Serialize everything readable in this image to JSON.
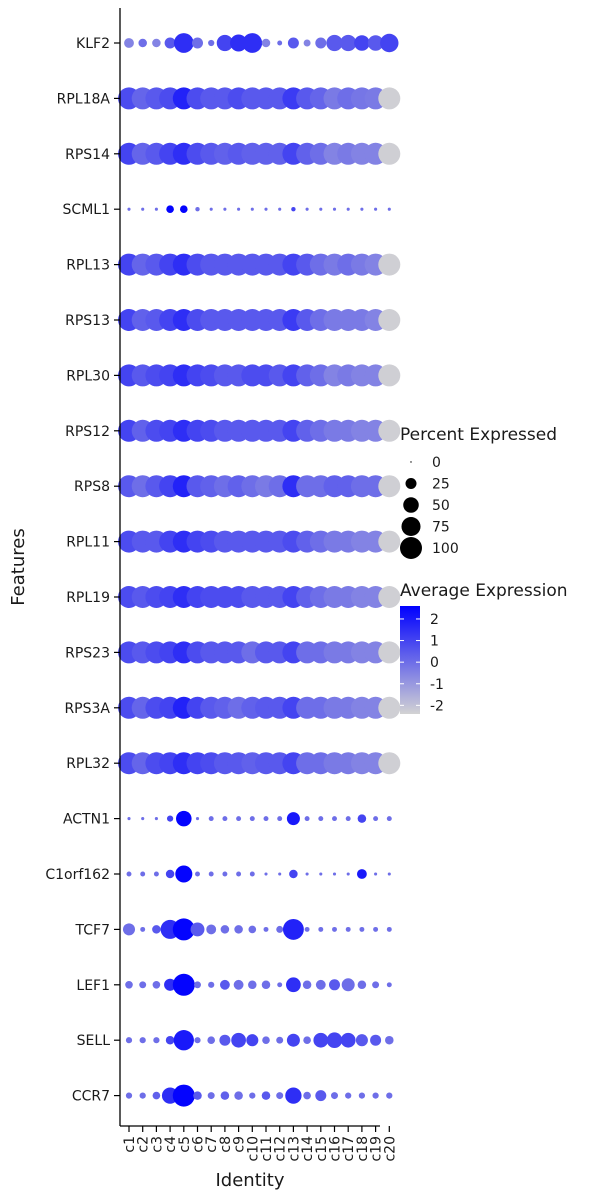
{
  "chart_data": {
    "type": "dotplot",
    "xlabel": "Identity",
    "ylabel": "Features",
    "categories": [
      "c1",
      "c2",
      "c3",
      "c4",
      "c5",
      "c6",
      "c7",
      "c8",
      "c9",
      "c10",
      "c11",
      "c12",
      "c13",
      "c14",
      "c15",
      "c16",
      "c17",
      "c18",
      "c19",
      "c20"
    ],
    "features": [
      "KLF2",
      "RPL18A",
      "RPS14",
      "SCML1",
      "RPL13",
      "RPS13",
      "RPL30",
      "RPS12",
      "RPS8",
      "RPL11",
      "RPL19",
      "RPS23",
      "RPS3A",
      "RPL32",
      "ACTN1",
      "C1orf162",
      "TCF7",
      "LEF1",
      "SELL",
      "CCR7"
    ],
    "rows": [
      {
        "feature": "KLF2",
        "pct": [
          20,
          15,
          15,
          25,
          80,
          25,
          8,
          55,
          60,
          80,
          15,
          5,
          25,
          10,
          25,
          55,
          55,
          50,
          50,
          70
        ],
        "avg": [
          -0.5,
          0,
          -0.5,
          0.5,
          1.5,
          0,
          0,
          1,
          1.5,
          1.5,
          -0.5,
          0,
          0.5,
          -0.5,
          0,
          0.5,
          0.5,
          1,
          0.5,
          1
        ]
      },
      {
        "feature": "RPL18A",
        "pct": [
          100,
          100,
          100,
          100,
          100,
          100,
          100,
          100,
          100,
          100,
          100,
          100,
          100,
          100,
          100,
          100,
          100,
          100,
          100,
          100
        ],
        "avg": [
          0.8,
          0.2,
          0.5,
          0.8,
          1.8,
          0.8,
          0.5,
          0.5,
          0.8,
          0.5,
          0.5,
          0.5,
          1.2,
          0.5,
          0.2,
          -0.3,
          0,
          -0.2,
          -0.3,
          -2.3
        ]
      },
      {
        "feature": "RPS14",
        "pct": [
          100,
          100,
          100,
          100,
          100,
          100,
          100,
          100,
          100,
          100,
          100,
          100,
          100,
          100,
          100,
          100,
          100,
          100,
          100,
          100
        ],
        "avg": [
          1,
          0.2,
          0.5,
          1,
          1.5,
          0.8,
          0.5,
          0.3,
          0.5,
          0.3,
          0.3,
          0.3,
          1,
          0.3,
          0,
          -0.5,
          -0.3,
          -0.5,
          -0.5,
          -2.3
        ]
      },
      {
        "feature": "SCML1",
        "pct": [
          2,
          2,
          2,
          12,
          12,
          4,
          2,
          2,
          2,
          2,
          2,
          2,
          4,
          2,
          2,
          2,
          2,
          2,
          2,
          2
        ],
        "avg": [
          0,
          0,
          0,
          2.5,
          2.5,
          0,
          0,
          0,
          0,
          0,
          0,
          0,
          1,
          0,
          0,
          0,
          0,
          0,
          0,
          0
        ]
      },
      {
        "feature": "RPL13",
        "pct": [
          100,
          100,
          100,
          100,
          100,
          100,
          100,
          100,
          100,
          100,
          100,
          100,
          100,
          100,
          100,
          100,
          100,
          100,
          100,
          100
        ],
        "avg": [
          1,
          0.2,
          0.5,
          1,
          1.5,
          0.8,
          0.5,
          0.5,
          0.5,
          0.5,
          0.5,
          0.5,
          1,
          0.5,
          0,
          -0.3,
          0,
          -0.3,
          -0.5,
          -2.3
        ]
      },
      {
        "feature": "RPS13",
        "pct": [
          100,
          100,
          100,
          100,
          100,
          100,
          100,
          100,
          100,
          100,
          100,
          100,
          100,
          100,
          100,
          100,
          100,
          100,
          100,
          100
        ],
        "avg": [
          1,
          0.3,
          0.5,
          1,
          1.5,
          0.8,
          0.5,
          0.5,
          0.5,
          0.5,
          0.5,
          0.5,
          1.2,
          0.5,
          0,
          -0.3,
          -0.3,
          -0.3,
          -0.5,
          -2.3
        ]
      },
      {
        "feature": "RPL30",
        "pct": [
          100,
          100,
          100,
          100,
          100,
          100,
          100,
          100,
          100,
          100,
          100,
          100,
          100,
          100,
          100,
          100,
          100,
          100,
          100,
          100
        ],
        "avg": [
          1,
          0.5,
          0.8,
          1,
          1.5,
          1,
          0.8,
          0.5,
          0.5,
          0.8,
          0.8,
          0.5,
          1,
          0.3,
          0,
          -0.5,
          -0.3,
          -0.5,
          -0.5,
          -2.3
        ]
      },
      {
        "feature": "RPS12",
        "pct": [
          100,
          100,
          100,
          100,
          100,
          100,
          100,
          100,
          100,
          100,
          100,
          100,
          100,
          100,
          100,
          100,
          100,
          100,
          100,
          100
        ],
        "avg": [
          1,
          0.3,
          0.8,
          1,
          1.5,
          1,
          0.8,
          0.5,
          0.5,
          0.5,
          0.5,
          0.5,
          1,
          0.3,
          0,
          -0.3,
          -0.3,
          -0.5,
          -0.5,
          -2.3
        ]
      },
      {
        "feature": "RPS8",
        "pct": [
          100,
          100,
          100,
          100,
          100,
          100,
          100,
          100,
          100,
          100,
          100,
          100,
          100,
          100,
          100,
          100,
          100,
          100,
          100,
          100
        ],
        "avg": [
          0.5,
          0,
          0.5,
          1,
          1.8,
          0.5,
          0.3,
          0,
          0.3,
          0,
          -0.3,
          0,
          1.5,
          0,
          0,
          0.3,
          0.3,
          0,
          0,
          -2.3
        ]
      },
      {
        "feature": "RPL11",
        "pct": [
          100,
          100,
          100,
          100,
          100,
          100,
          100,
          100,
          100,
          100,
          100,
          100,
          100,
          100,
          100,
          100,
          100,
          100,
          100,
          100
        ],
        "avg": [
          0.8,
          0.5,
          0.5,
          1,
          1.5,
          1,
          0.8,
          0.5,
          0.5,
          0.5,
          0.5,
          0.5,
          0.8,
          0.3,
          0,
          -0.3,
          -0.3,
          -0.5,
          -0.5,
          -2.3
        ]
      },
      {
        "feature": "RPL19",
        "pct": [
          100,
          100,
          100,
          100,
          100,
          100,
          100,
          100,
          100,
          100,
          100,
          100,
          100,
          100,
          100,
          100,
          100,
          100,
          100,
          100
        ],
        "avg": [
          0.8,
          0.5,
          0.8,
          1,
          1.5,
          1,
          0.8,
          0.8,
          0.8,
          0.5,
          0.5,
          0.5,
          1,
          0.3,
          0,
          -0.3,
          -0.3,
          -0.5,
          -0.5,
          -2.3
        ]
      },
      {
        "feature": "RPS23",
        "pct": [
          100,
          100,
          100,
          100,
          100,
          100,
          100,
          100,
          100,
          100,
          100,
          100,
          100,
          100,
          100,
          100,
          100,
          100,
          100,
          100
        ],
        "avg": [
          0.8,
          0.5,
          0.8,
          1,
          1.5,
          0.8,
          0.5,
          0.5,
          0.5,
          0,
          0.5,
          0.5,
          1,
          0,
          0,
          -0.3,
          -0.3,
          -0.5,
          -0.5,
          -2.3
        ]
      },
      {
        "feature": "RPS3A",
        "pct": [
          100,
          100,
          100,
          100,
          100,
          100,
          100,
          100,
          100,
          100,
          100,
          100,
          100,
          100,
          100,
          100,
          100,
          100,
          100,
          100
        ],
        "avg": [
          0.8,
          0.2,
          0.8,
          1,
          1.8,
          1,
          0.5,
          0.3,
          0,
          0.3,
          0.5,
          0.5,
          1,
          0,
          0,
          -0.3,
          -0.3,
          -0.5,
          -0.5,
          -2.3
        ]
      },
      {
        "feature": "RPL32",
        "pct": [
          100,
          100,
          100,
          100,
          100,
          100,
          100,
          100,
          100,
          100,
          100,
          100,
          100,
          100,
          100,
          100,
          100,
          100,
          100,
          100
        ],
        "avg": [
          0.8,
          0.2,
          0.8,
          1,
          1.5,
          1,
          0.8,
          0.5,
          0.5,
          0.3,
          0.5,
          0.5,
          1,
          0,
          0,
          -0.3,
          -0.3,
          -0.5,
          -0.5,
          -2.3
        ]
      },
      {
        "feature": "ACTN1",
        "pct": [
          2,
          2,
          2,
          8,
          50,
          2,
          5,
          5,
          5,
          5,
          5,
          5,
          35,
          5,
          5,
          5,
          5,
          15,
          5,
          5
        ],
        "avg": [
          0,
          0,
          0,
          1,
          2.5,
          0,
          0,
          0,
          0,
          0,
          0,
          0,
          2,
          0,
          0,
          0,
          0,
          1,
          0,
          0
        ]
      },
      {
        "feature": "C1orf162",
        "pct": [
          5,
          5,
          5,
          15,
          60,
          5,
          5,
          5,
          5,
          5,
          2,
          2,
          15,
          2,
          2,
          2,
          2,
          20,
          2,
          2
        ],
        "avg": [
          0,
          0,
          0,
          1,
          2.5,
          0,
          0,
          0,
          0,
          0,
          0,
          0,
          1,
          0,
          0,
          0,
          0,
          2,
          0,
          0
        ]
      },
      {
        "feature": "TCF7",
        "pct": [
          30,
          5,
          15,
          75,
          100,
          40,
          20,
          15,
          15,
          12,
          5,
          10,
          90,
          5,
          5,
          5,
          5,
          5,
          5,
          5
        ],
        "avg": [
          0,
          0,
          0.5,
          1.5,
          2.5,
          0.5,
          0,
          0,
          0,
          0,
          0,
          0,
          1.8,
          0,
          0,
          0,
          0,
          0,
          0,
          0
        ]
      },
      {
        "feature": "LEF1",
        "pct": [
          12,
          10,
          12,
          30,
          100,
          10,
          8,
          20,
          20,
          15,
          15,
          5,
          45,
          15,
          20,
          25,
          35,
          15,
          10,
          5
        ],
        "avg": [
          0,
          0,
          0,
          1.5,
          2.5,
          0,
          0,
          0.5,
          0,
          0,
          0,
          0,
          1.5,
          0,
          0,
          0.5,
          0,
          0,
          0,
          0
        ]
      },
      {
        "feature": "SELL",
        "pct": [
          8,
          8,
          8,
          15,
          85,
          8,
          12,
          25,
          45,
          30,
          12,
          10,
          35,
          12,
          45,
          50,
          45,
          30,
          25,
          15
        ],
        "avg": [
          0,
          0,
          0,
          1,
          2,
          0,
          0,
          0.5,
          1,
          1,
          0,
          0,
          1,
          0,
          1,
          1,
          1,
          0.5,
          0.5,
          0
        ]
      },
      {
        "feature": "CCR7",
        "pct": [
          8,
          8,
          12,
          55,
          100,
          15,
          10,
          15,
          15,
          8,
          15,
          10,
          55,
          12,
          25,
          10,
          8,
          8,
          8,
          8
        ],
        "avg": [
          0,
          0,
          0.3,
          1.5,
          2.5,
          0.5,
          0,
          0.3,
          0,
          0,
          0.5,
          0,
          1.5,
          0,
          0.5,
          0,
          0,
          0,
          0,
          0
        ]
      }
    ],
    "size_legend": {
      "title": "Percent Expressed",
      "breaks": [
        0,
        25,
        50,
        75,
        100
      ]
    },
    "color_legend": {
      "title": "Average Expression",
      "breaks": [
        2,
        1,
        0,
        -1,
        -2
      ],
      "range": [
        -2.4,
        2.6
      ],
      "low_color": "#d3d3d3",
      "high_color": "#0000ff"
    }
  }
}
